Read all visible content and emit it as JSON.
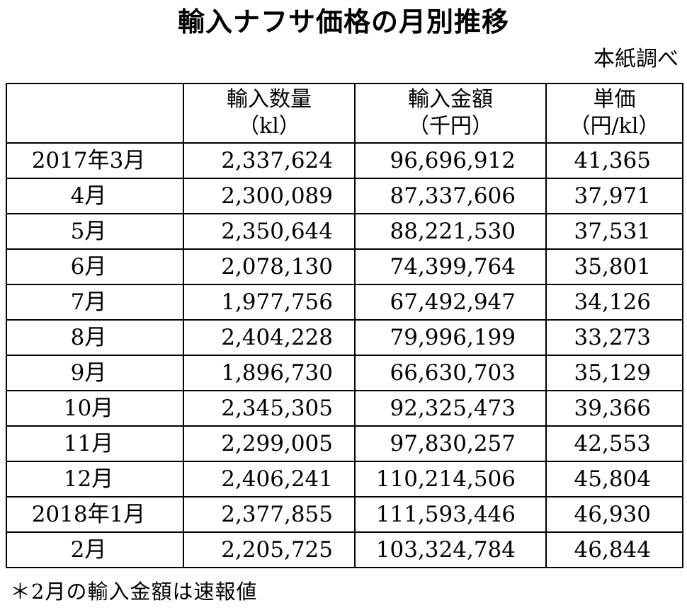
{
  "title": "輸入ナフサ価格の月別推移",
  "source": "本紙調べ",
  "table": {
    "headers": [
      {
        "line1": "",
        "line2": ""
      },
      {
        "line1": "輸入数量",
        "line2": "（kl）"
      },
      {
        "line1": "輸入金額",
        "line2": "（千円）"
      },
      {
        "line1": "単価",
        "line2": "（円/kl）"
      }
    ],
    "rows": [
      {
        "month": "2017年3月",
        "quantity": "2,337,624",
        "amount": "96,696,912",
        "unit_price": "41,365"
      },
      {
        "month": "4月",
        "quantity": "2,300,089",
        "amount": "87,337,606",
        "unit_price": "37,971"
      },
      {
        "month": "5月",
        "quantity": "2,350,644",
        "amount": "88,221,530",
        "unit_price": "37,531"
      },
      {
        "month": "6月",
        "quantity": "2,078,130",
        "amount": "74,399,764",
        "unit_price": "35,801"
      },
      {
        "month": "7月",
        "quantity": "1,977,756",
        "amount": "67,492,947",
        "unit_price": "34,126"
      },
      {
        "month": "8月",
        "quantity": "2,404,228",
        "amount": "79,996,199",
        "unit_price": "33,273"
      },
      {
        "month": "9月",
        "quantity": "1,896,730",
        "amount": "66,630,703",
        "unit_price": "35,129"
      },
      {
        "month": "10月",
        "quantity": "2,345,305",
        "amount": "92,325,473",
        "unit_price": "39,366"
      },
      {
        "month": "11月",
        "quantity": "2,299,005",
        "amount": "97,830,257",
        "unit_price": "42,553"
      },
      {
        "month": "12月",
        "quantity": "2,406,241",
        "amount": "110,214,506",
        "unit_price": "45,804"
      },
      {
        "month": "2018年1月",
        "quantity": "2,377,855",
        "amount": "111,593,446",
        "unit_price": "46,930"
      },
      {
        "month": "2月",
        "quantity": "2,205,725",
        "amount": "103,324,784",
        "unit_price": "46,844"
      }
    ]
  },
  "note": "＊2月の輸入金額は速報値"
}
